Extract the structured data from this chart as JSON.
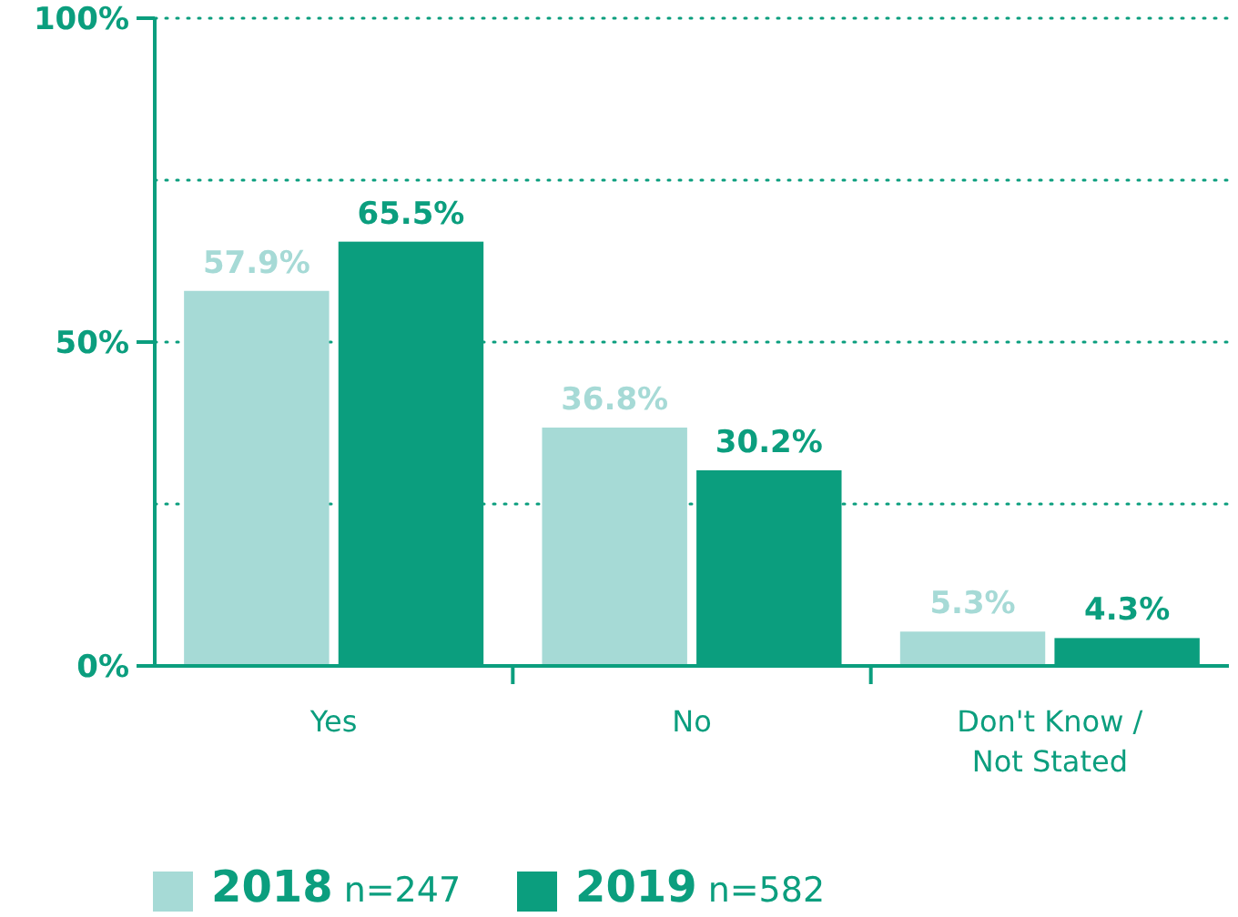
{
  "chart_data": {
    "type": "bar",
    "categories": [
      "Yes",
      "No",
      "Don't Know / Not Stated"
    ],
    "series": [
      {
        "name": "2018 n=247",
        "color": "#a6dad6",
        "values": [
          57.9,
          36.8,
          5.3
        ],
        "value_labels": [
          "57.9%",
          "36.8%",
          "5.3%"
        ]
      },
      {
        "name": "2019 n=582",
        "color": "#0b9e7e",
        "values": [
          65.5,
          30.2,
          4.3
        ],
        "value_labels": [
          "65.5%",
          "30.2%",
          "4.3%"
        ]
      }
    ],
    "ylim": [
      0,
      100
    ],
    "yticks": [
      {
        "value": 0,
        "label": "0%"
      },
      {
        "value": 25,
        "label": null
      },
      {
        "value": 50,
        "label": "50%"
      },
      {
        "value": 75,
        "label": null
      },
      {
        "value": 100,
        "label": "100%"
      }
    ],
    "grid": "y",
    "legend": "bottom"
  }
}
